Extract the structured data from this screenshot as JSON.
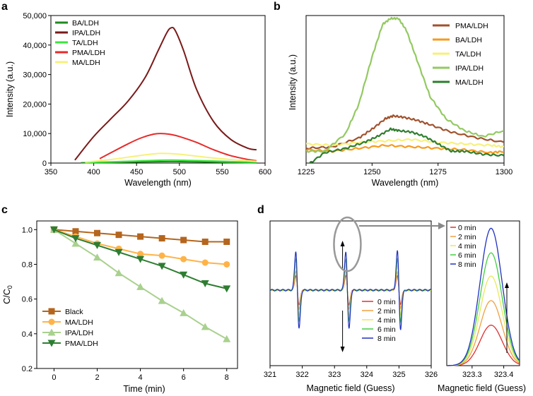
{
  "panel_labels": {
    "a": "a",
    "b": "b",
    "c": "c",
    "d": "d"
  },
  "chart_data": [
    {
      "id": "a",
      "type": "line",
      "xlabel": "Wavelength (nm)",
      "ylabel": "Intensity (a.u.)",
      "xlim": [
        350,
        600
      ],
      "ylim": [
        0,
        50000
      ],
      "xticks": [
        350,
        400,
        450,
        500,
        550,
        600
      ],
      "yticks": [
        0,
        10000,
        20000,
        30000,
        40000,
        50000
      ],
      "ytick_labels": [
        "0",
        "10,000",
        "20,000",
        "30,000",
        "40,000",
        "50,000"
      ],
      "legend_position": "top-left",
      "series": [
        {
          "name": "BA/LDH",
          "color": "#1f8a1f",
          "x": [
            385,
            420,
            450,
            470,
            490,
            510,
            540,
            560,
            590
          ],
          "y": [
            100,
            200,
            350,
            450,
            500,
            450,
            300,
            200,
            100
          ]
        },
        {
          "name": "IPA/LDH",
          "color": "#7a1a1a",
          "x": [
            378,
            400,
            420,
            440,
            460,
            475,
            485,
            490,
            495,
            505,
            520,
            540,
            560,
            580,
            590
          ],
          "y": [
            1000,
            9000,
            15000,
            21000,
            29000,
            38000,
            44000,
            45800,
            45000,
            38000,
            25000,
            14000,
            8000,
            5000,
            4500
          ]
        },
        {
          "name": "TA/LDH",
          "color": "#3ce63c",
          "x": [
            390,
            420,
            450,
            470,
            490,
            510,
            540,
            560,
            590
          ],
          "y": [
            200,
            400,
            700,
            900,
            1000,
            900,
            700,
            500,
            300
          ]
        },
        {
          "name": "PMA/LDH",
          "color": "#e82a2a",
          "x": [
            407,
            420,
            440,
            455,
            470,
            480,
            490,
            500,
            520,
            540,
            560,
            580,
            590
          ],
          "y": [
            1500,
            3500,
            6500,
            8500,
            9800,
            10000,
            9700,
            9000,
            7000,
            4500,
            2500,
            1200,
            800
          ]
        },
        {
          "name": "MA/LDH",
          "color": "#f7f07a",
          "x": [
            390,
            420,
            450,
            470,
            480,
            500,
            530,
            560,
            590
          ],
          "y": [
            300,
            1200,
            2400,
            3100,
            3300,
            3000,
            2000,
            1200,
            600
          ]
        }
      ]
    },
    {
      "id": "b",
      "type": "line",
      "xlabel": "Wavelength (nm)",
      "ylabel": "Intensity (a.u.)",
      "xlim": [
        1225,
        1300
      ],
      "ylim": [
        0,
        100
      ],
      "xticks": [
        1225,
        1250,
        1275,
        1300
      ],
      "yticks_shown": false,
      "legend_position": "top-right",
      "series": [
        {
          "name": "PMA/LDH",
          "color": "#a0522d",
          "x": [
            1225,
            1235,
            1245,
            1250,
            1255,
            1258,
            1262,
            1267,
            1272,
            1280,
            1290,
            1300
          ],
          "y": [
            10,
            11,
            17,
            23,
            30,
            32,
            31,
            29,
            26,
            21,
            17,
            14
          ]
        },
        {
          "name": "BA/LDH",
          "color": "#f59a1c",
          "x": [
            1225,
            1235,
            1245,
            1255,
            1265,
            1275,
            1285,
            1295,
            1300
          ],
          "y": [
            9,
            8,
            10,
            12,
            11,
            10,
            9,
            7,
            8
          ]
        },
        {
          "name": "TA/LDH",
          "color": "#f7f07a",
          "x": [
            1225,
            1235,
            1245,
            1255,
            1265,
            1275,
            1285,
            1295,
            1300
          ],
          "y": [
            13,
            12,
            14,
            15,
            16,
            14,
            13,
            12,
            11
          ]
        },
        {
          "name": "IPA/LDH",
          "color": "#93c961",
          "x": [
            1225,
            1232,
            1240,
            1245,
            1250,
            1254,
            1257,
            1260,
            1263,
            1267,
            1272,
            1278,
            1285,
            1292,
            1300
          ],
          "y": [
            8,
            8,
            20,
            40,
            72,
            94,
            98,
            98,
            90,
            70,
            45,
            30,
            22,
            18,
            22
          ]
        },
        {
          "name": "MA/LDH",
          "color": "#2e7d2e",
          "x": [
            1225,
            1232,
            1240,
            1247,
            1252,
            1257,
            1260,
            1265,
            1270,
            1275,
            1280,
            1285,
            1292,
            1300
          ],
          "y": [
            -2,
            7,
            10,
            14,
            18,
            23,
            22,
            21,
            18,
            13,
            8,
            8,
            6,
            5
          ]
        }
      ]
    },
    {
      "id": "c",
      "type": "line",
      "xlabel": "Time (min)",
      "ylabel": "C/C",
      "ylabel_sub": "0",
      "xlim": [
        -0.8,
        8.5
      ],
      "ylim": [
        0.2,
        1.05
      ],
      "xticks": [
        0,
        2,
        4,
        6,
        8
      ],
      "yticks": [
        0.2,
        0.4,
        0.6,
        0.8,
        1.0
      ],
      "ytick_labels": [
        "0.2",
        "0.4",
        "0.6",
        "0.8",
        "1.0"
      ],
      "legend_position": "bottom-left",
      "series": [
        {
          "name": "Black",
          "color": "#b5651d",
          "marker": "square",
          "x": [
            0,
            1,
            2,
            3,
            4,
            5,
            6,
            7,
            8
          ],
          "y": [
            1.0,
            0.99,
            0.98,
            0.97,
            0.96,
            0.95,
            0.94,
            0.93,
            0.93
          ]
        },
        {
          "name": "MA/LDH",
          "color": "#ffb347",
          "marker": "circle",
          "x": [
            0,
            1,
            2,
            3,
            4,
            5,
            6,
            7,
            8
          ],
          "y": [
            1.0,
            0.96,
            0.92,
            0.89,
            0.86,
            0.85,
            0.83,
            0.81,
            0.8
          ]
        },
        {
          "name": "IPA/LDH",
          "color": "#a9d18e",
          "marker": "triangle-up",
          "x": [
            0,
            1,
            2,
            3,
            4,
            5,
            6,
            7,
            8
          ],
          "y": [
            1.0,
            0.92,
            0.84,
            0.75,
            0.67,
            0.59,
            0.52,
            0.44,
            0.37
          ]
        },
        {
          "name": "PMA/LDH",
          "color": "#2e7d32",
          "marker": "triangle-down",
          "x": [
            0,
            1,
            2,
            3,
            4,
            5,
            6,
            7,
            8
          ],
          "y": [
            1.0,
            0.95,
            0.91,
            0.87,
            0.83,
            0.79,
            0.74,
            0.69,
            0.66
          ]
        }
      ]
    },
    {
      "id": "d-main",
      "type": "line",
      "xlabel": "Magnetic field (Guess)",
      "xlim": [
        321,
        326
      ],
      "ylim": [
        -1,
        1
      ],
      "xticks": [
        321,
        322,
        323,
        324,
        325,
        326
      ],
      "legend_position": "bottom-right",
      "peak_centers": [
        321.85,
        323.4,
        325.0
      ],
      "series": [
        {
          "name": "0 min",
          "color": "#e03030",
          "amplitude": 0.35
        },
        {
          "name": "2 min",
          "color": "#f0a040",
          "amplitude": 0.45
        },
        {
          "name": "4 min",
          "color": "#e8e860",
          "amplitude": 0.6
        },
        {
          "name": "6 min",
          "color": "#40d040",
          "amplitude": 0.75
        },
        {
          "name": "8 min",
          "color": "#2030c0",
          "amplitude": 0.95
        }
      ]
    },
    {
      "id": "d-inset",
      "type": "line",
      "xlabel": "Magnetic field (Guess)",
      "xlim": [
        323.22,
        323.45
      ],
      "ylim": [
        0,
        1
      ],
      "xticks": [
        323.3,
        323.4
      ],
      "xtick_labels": [
        "323.3",
        "323.4"
      ],
      "legend_position": "top-left",
      "peak_center": 323.36,
      "series": [
        {
          "name": "0 min",
          "color": "#e03030",
          "peak": 0.28
        },
        {
          "name": "2 min",
          "color": "#f0a040",
          "peak": 0.45
        },
        {
          "name": "4 min",
          "color": "#e8e860",
          "peak": 0.62
        },
        {
          "name": "6 min",
          "color": "#40d040",
          "peak": 0.78
        },
        {
          "name": "8 min",
          "color": "#2030c0",
          "peak": 0.95
        }
      ]
    }
  ]
}
